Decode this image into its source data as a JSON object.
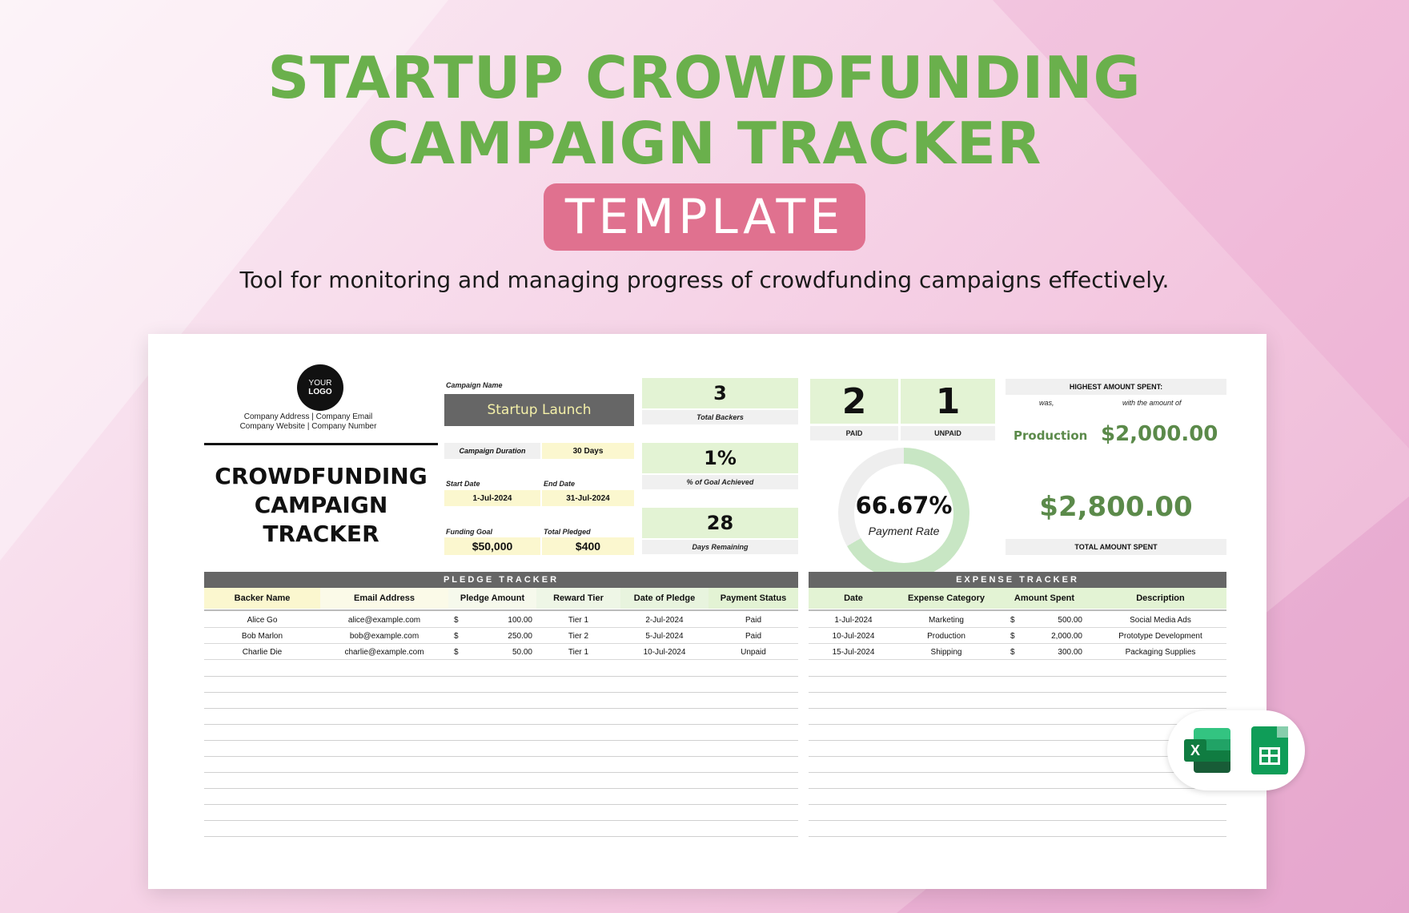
{
  "header": {
    "title_line1": "STARTUP CROWDFUNDING",
    "title_line2": "CAMPAIGN TRACKER",
    "badge": "TEMPLATE",
    "subtitle": "Tool for monitoring and managing progress of crowdfunding campaigns effectively."
  },
  "logo": {
    "line1": "YOUR",
    "line2": "LOGO"
  },
  "company": {
    "line1": "Company Address  |  Company Email",
    "line2": "Company Website  |  Company Number"
  },
  "sheet_title": {
    "line1": "CROWDFUNDING",
    "line2": "CAMPAIGN",
    "line3": "TRACKER"
  },
  "campaign": {
    "name_label": "Campaign Name",
    "name": "Startup Launch",
    "duration_label": "Campaign Duration",
    "duration": "30 Days",
    "start_label": "Start Date",
    "start": "1-Jul-2024",
    "end_label": "End Date",
    "end": "31-Jul-2024",
    "goal_label": "Funding Goal",
    "goal": "$50,000",
    "pledged_label": "Total Pledged",
    "pledged": "$400"
  },
  "stats": {
    "backers": "3",
    "backers_label": "Total Backers",
    "goal_pct": "1%",
    "goal_pct_label": "% of Goal Achieved",
    "days_remaining": "28",
    "days_remaining_label": "Days Remaining",
    "paid": "2",
    "paid_label": "PAID",
    "unpaid": "1",
    "unpaid_label": "UNPAID",
    "payment_rate": "66.67%",
    "payment_rate_value": 0.6667,
    "payment_rate_label": "Payment Rate"
  },
  "spending": {
    "highest_label": "HIGHEST AMOUNT SPENT:",
    "was_label": "was,",
    "with_label": "with the amount of",
    "highest_category": "Production",
    "highest_amount": "$2,000.00",
    "total_amount": "$2,800.00",
    "total_label": "TOTAL AMOUNT SPENT"
  },
  "pledge_tracker": {
    "title": "PLEDGE TRACKER",
    "columns": [
      "Backer Name",
      "Email Address",
      "Pledge Amount",
      "Reward Tier",
      "Date of Pledge",
      "Payment Status"
    ],
    "rows": [
      {
        "name": "Alice Go",
        "email": "alice@example.com",
        "currency": "$",
        "amount": "100.00",
        "tier": "Tier 1",
        "date": "2-Jul-2024",
        "status": "Paid"
      },
      {
        "name": "Bob Marlon",
        "email": "bob@example.com",
        "currency": "$",
        "amount": "250.00",
        "tier": "Tier 2",
        "date": "5-Jul-2024",
        "status": "Paid"
      },
      {
        "name": "Charlie Die",
        "email": "charlie@example.com",
        "currency": "$",
        "amount": "50.00",
        "tier": "Tier 1",
        "date": "10-Jul-2024",
        "status": "Unpaid"
      }
    ]
  },
  "expense_tracker": {
    "title": "EXPENSE TRACKER",
    "columns": [
      "Date",
      "Expense Category",
      "Amount Spent",
      "Description"
    ],
    "rows": [
      {
        "date": "1-Jul-2024",
        "category": "Marketing",
        "currency": "$",
        "amount": "500.00",
        "description": "Social Media Ads"
      },
      {
        "date": "10-Jul-2024",
        "category": "Production",
        "currency": "$",
        "amount": "2,000.00",
        "description": "Prototype Development"
      },
      {
        "date": "15-Jul-2024",
        "category": "Shipping",
        "currency": "$",
        "amount": "300.00",
        "description": "Packaging Supplies"
      }
    ]
  },
  "app_icons": {
    "excel_letter": "X",
    "excel": "excel-icon",
    "sheets": "google-sheets-icon"
  },
  "colors": {
    "title_green": "#6ab04c",
    "badge_pink": "#e0718f",
    "header_gray": "#666666",
    "light_green": "#e3f3d4",
    "light_yellow": "#fbf7cf",
    "amount_green": "#5b8a4a"
  }
}
